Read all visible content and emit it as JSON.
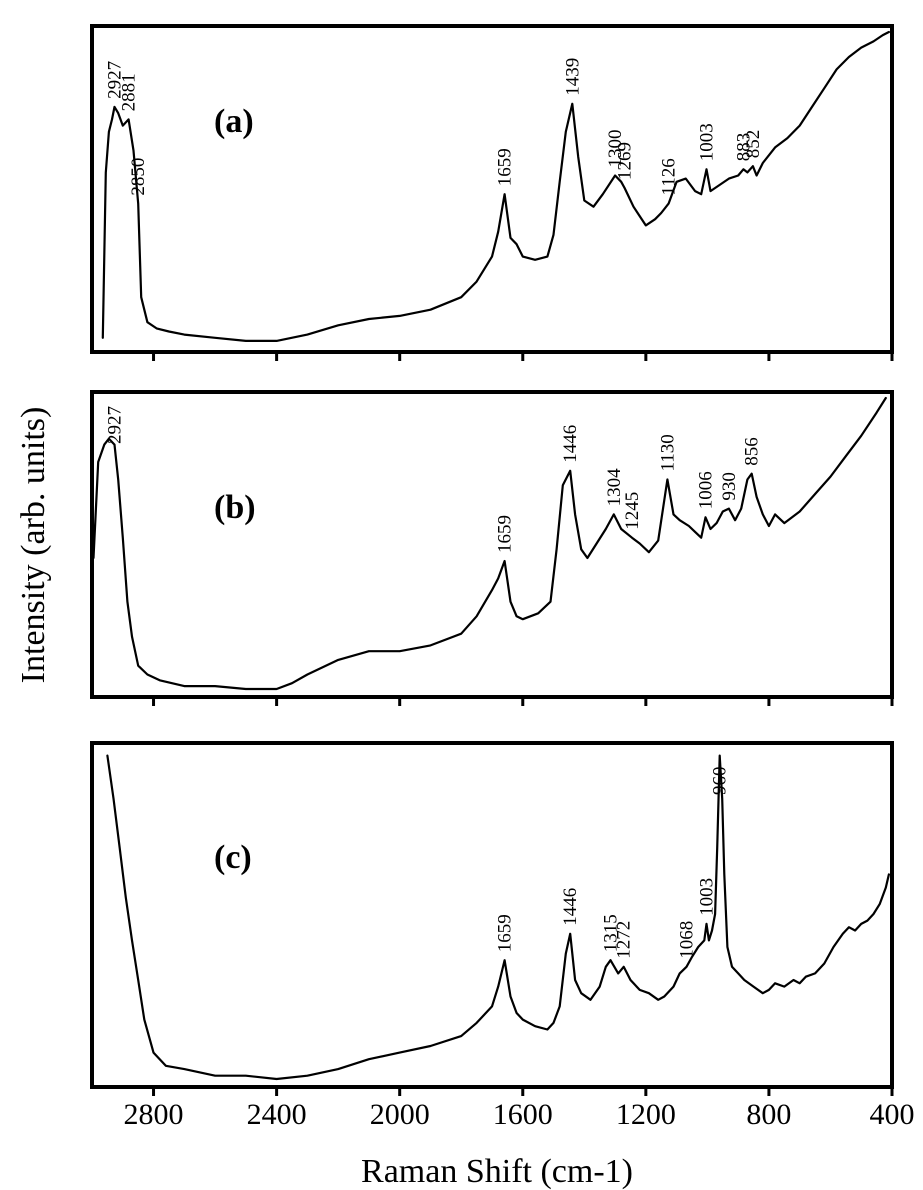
{
  "chart_data": {
    "type": "line",
    "xlabel": "Raman Shift (cm-1)",
    "ylabel": "Intensity (arb. units)",
    "xlim": [
      3000,
      400
    ],
    "x_reversed": true,
    "x_ticks": [
      2800,
      2400,
      2000,
      1600,
      1200,
      800,
      400
    ],
    "y_units": "arbitrary (0 = panel baseline, 100 = panel top)",
    "panels": [
      {
        "label": "(a)",
        "series": [
          {
            "x": [
              2965,
              2955,
              2945,
              2935,
              2927,
              2915,
              2900,
              2881,
              2865,
              2850,
              2840,
              2820,
              2790,
              2750,
              2700,
              2600,
              2500,
              2400,
              2300,
              2200,
              2100,
              2000,
              1900,
              1800,
              1750,
              1700,
              1680,
              1659,
              1640,
              1620,
              1600,
              1560,
              1520,
              1500,
              1480,
              1460,
              1439,
              1420,
              1400,
              1370,
              1340,
              1300,
              1280,
              1269,
              1240,
              1200,
              1170,
              1150,
              1126,
              1100,
              1070,
              1040,
              1020,
              1003,
              990,
              960,
              930,
              900,
              883,
              870,
              852,
              840,
              820,
              780,
              740,
              700,
              660,
              620,
              580,
              540,
              500,
              460,
              430,
              410
            ],
            "y": [
              2,
              55,
              68,
              72,
              76,
              74,
              70,
              72,
              62,
              45,
              15,
              7,
              5,
              4,
              3,
              2,
              1,
              1,
              3,
              6,
              8,
              9,
              11,
              15,
              20,
              28,
              36,
              48,
              34,
              32,
              28,
              27,
              28,
              35,
              52,
              68,
              77,
              60,
              46,
              44,
              48,
              54,
              52,
              50,
              44,
              38,
              40,
              42,
              45,
              52,
              53,
              49,
              48,
              56,
              49,
              51,
              53,
              54,
              56,
              55,
              57,
              54,
              58,
              63,
              66,
              70,
              76,
              82,
              88,
              92,
              95,
              97,
              99,
              100
            ]
          }
        ],
        "annotations": [
          "2927",
          "2881",
          "2850",
          "1659",
          "1439",
          "1300",
          "1269",
          "1126",
          "1003",
          "883",
          "852"
        ]
      },
      {
        "label": "(b)",
        "series": [
          {
            "x": [
              2995,
              2980,
              2960,
              2945,
              2927,
              2915,
              2900,
              2885,
              2870,
              2850,
              2820,
              2780,
              2700,
              2600,
              2500,
              2450,
              2400,
              2350,
              2300,
              2200,
              2100,
              2000,
              1900,
              1800,
              1750,
              1700,
              1680,
              1659,
              1640,
              1620,
              1600,
              1550,
              1510,
              1490,
              1470,
              1446,
              1430,
              1410,
              1390,
              1360,
              1330,
              1304,
              1280,
              1245,
              1220,
              1190,
              1160,
              1130,
              1110,
              1090,
              1060,
              1040,
              1020,
              1006,
              990,
              970,
              950,
              930,
              910,
              890,
              870,
              856,
              840,
              820,
              800,
              780,
              750,
              700,
              650,
              600,
              550,
              500,
              450,
              420
            ],
            "y": [
              45,
              78,
              84,
              86,
              84,
              72,
              52,
              30,
              18,
              8,
              5,
              3,
              1,
              1,
              0,
              0,
              0,
              2,
              5,
              10,
              13,
              13,
              15,
              19,
              25,
              34,
              38,
              44,
              30,
              25,
              24,
              26,
              30,
              48,
              70,
              75,
              60,
              48,
              45,
              50,
              55,
              60,
              55,
              52,
              50,
              47,
              51,
              72,
              60,
              58,
              56,
              54,
              52,
              59,
              55,
              57,
              61,
              62,
              58,
              62,
              72,
              74,
              66,
              60,
              56,
              60,
              57,
              61,
              67,
              73,
              80,
              87,
              95,
              100
            ]
          }
        ],
        "annotations": [
          "2927",
          "1659",
          "1446",
          "1304",
          "1245",
          "1130",
          "1006",
          "930",
          "856"
        ]
      },
      {
        "label": "(c)",
        "series": [
          {
            "x": [
              2950,
              2930,
              2910,
              2890,
              2870,
              2850,
              2830,
              2800,
              2760,
              2700,
              2600,
              2500,
              2400,
              2300,
              2200,
              2100,
              2000,
              1900,
              1800,
              1750,
              1700,
              1680,
              1659,
              1640,
              1620,
              1600,
              1560,
              1520,
              1500,
              1480,
              1460,
              1446,
              1430,
              1410,
              1380,
              1350,
              1330,
              1315,
              1290,
              1272,
              1250,
              1220,
              1190,
              1160,
              1140,
              1110,
              1090,
              1068,
              1050,
              1030,
              1010,
              1003,
              995,
              985,
              975,
              968,
              960,
              952,
              945,
              935,
              920,
              900,
              880,
              850,
              820,
              800,
              780,
              750,
              720,
              700,
              680,
              650,
              620,
              590,
              560,
              540,
              520,
              500,
              480,
              460,
              440,
              420,
              410
            ],
            "y": [
              98,
              85,
              70,
              55,
              42,
              30,
              18,
              8,
              4,
              3,
              1,
              1,
              0,
              1,
              3,
              6,
              8,
              10,
              13,
              17,
              22,
              28,
              36,
              25,
              20,
              18,
              16,
              15,
              17,
              22,
              38,
              44,
              30,
              26,
              24,
              28,
              34,
              36,
              32,
              34,
              30,
              27,
              26,
              24,
              25,
              28,
              32,
              34,
              37,
              40,
              42,
              47,
              42,
              45,
              50,
              70,
              98,
              85,
              62,
              40,
              34,
              32,
              30,
              28,
              26,
              27,
              29,
              28,
              30,
              29,
              31,
              32,
              35,
              40,
              44,
              46,
              45,
              47,
              48,
              50,
              53,
              58,
              62
            ]
          }
        ],
        "annotations": [
          "1659",
          "1446",
          "1315",
          "1272",
          "1068",
          "1003",
          "960"
        ]
      }
    ]
  }
}
